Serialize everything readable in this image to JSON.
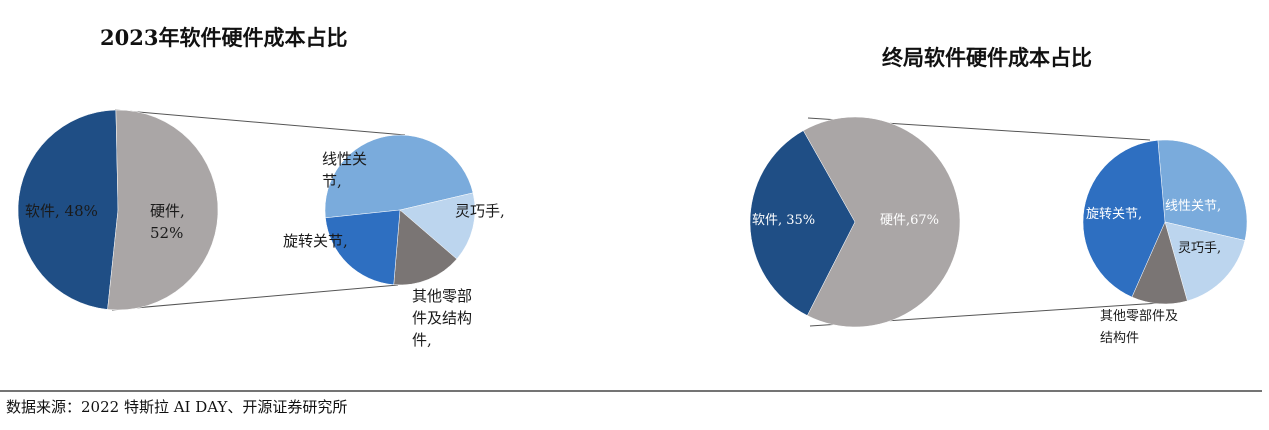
{
  "chart_data": [
    {
      "type": "pie-of-pie",
      "title": "2023年软件硬件成本占比",
      "categories": [
        "软件",
        "硬件"
      ],
      "values": [
        48,
        52
      ],
      "value_labels": [
        "软件, 48%",
        "硬件, 52%"
      ],
      "colors": [
        "#1f4e85",
        "#aaa6a6"
      ],
      "sub": {
        "categories": [
          "线性关节,",
          "灵巧手,",
          "其他零部件及结构件,",
          "旋转关节,"
        ],
        "values": [
          48,
          15,
          15,
          22
        ],
        "colors": [
          "#7aabdc",
          "#bcd5ee",
          "#7a7574",
          "#2e6fc1"
        ]
      }
    },
    {
      "type": "pie-of-pie",
      "title": "终局软件硬件成本占比",
      "categories": [
        "软件",
        "硬件"
      ],
      "values": [
        35,
        67
      ],
      "value_labels": [
        "软件, 35%",
        "硬件,67%"
      ],
      "colors": [
        "#1f4e85",
        "#aaa6a6"
      ],
      "sub": {
        "categories": [
          "线性关节,",
          "灵巧手,",
          "其他零部件及结构件",
          "旋转关节,"
        ],
        "values": [
          30,
          17,
          11,
          42
        ],
        "colors": [
          "#7aabdc",
          "#bcd5ee",
          "#7a7574",
          "#2e6fc1"
        ]
      }
    }
  ],
  "source": "数据来源：2022 特斯拉 AI DAY、开源证券研究所"
}
